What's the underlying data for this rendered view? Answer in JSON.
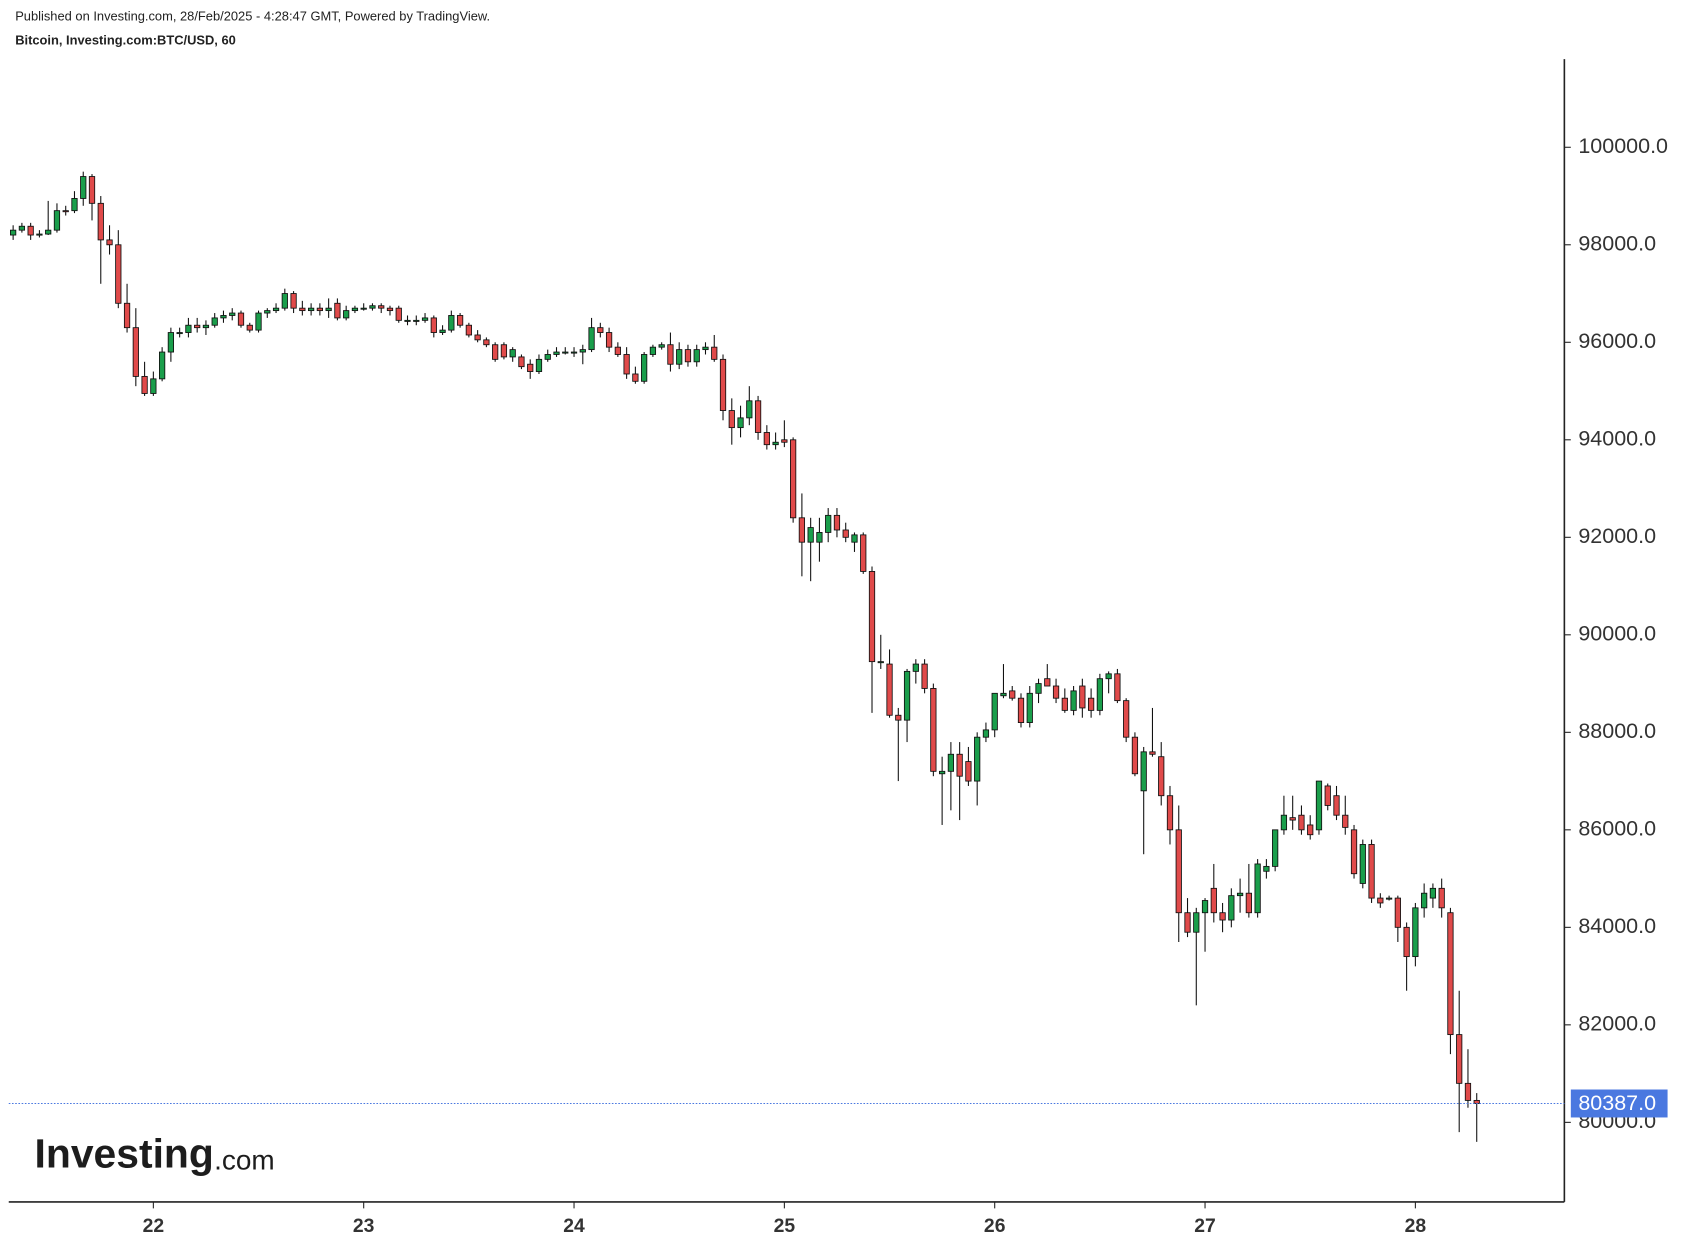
{
  "header": {
    "published": "Published on Investing.com, 28/Feb/2025 - 4:28:47 GMT, Powered by TradingView.",
    "instrument": "Bitcoin, Investing.com:BTC/USD, 60"
  },
  "logo": {
    "brand": "Investing",
    "suffix": ".com"
  },
  "chart_data": {
    "type": "candlestick",
    "up_color": "#1a9e4b",
    "down_color": "#e04a4a",
    "outline_color": "#111111",
    "xlim": [
      -0.5,
      177
    ],
    "xticks": [
      {
        "value": 16,
        "label": "22"
      },
      {
        "value": 40,
        "label": "23"
      },
      {
        "value": 64,
        "label": "24"
      },
      {
        "value": 88,
        "label": "25"
      },
      {
        "value": 112,
        "label": "26"
      },
      {
        "value": 136,
        "label": "27"
      },
      {
        "value": 160,
        "label": "28"
      }
    ],
    "ylim": [
      78368,
      101808
    ],
    "yticks": [
      {
        "value": 80000,
        "label": "80000.0"
      },
      {
        "value": 82000,
        "label": "82000.0"
      },
      {
        "value": 84000,
        "label": "84000.0"
      },
      {
        "value": 86000,
        "label": "86000.0"
      },
      {
        "value": 88000,
        "label": "88000.0"
      },
      {
        "value": 90000,
        "label": "90000.0"
      },
      {
        "value": 92000,
        "label": "92000.0"
      },
      {
        "value": 94000,
        "label": "94000.0"
      },
      {
        "value": 96000,
        "label": "96000.0"
      },
      {
        "value": 98000,
        "label": "98000.0"
      },
      {
        "value": 100000,
        "label": "100000.0"
      }
    ],
    "last_price": {
      "value": 80387,
      "label": "80387.0",
      "color": "#4a78e0"
    },
    "candles": [
      [
        98200,
        98400,
        98100,
        98300
      ],
      [
        98300,
        98450,
        98250,
        98380
      ],
      [
        98380,
        98450,
        98100,
        98200
      ],
      [
        98200,
        98300,
        98150,
        98220
      ],
      [
        98220,
        98900,
        98200,
        98300
      ],
      [
        98300,
        98850,
        98250,
        98700
      ],
      [
        98700,
        98800,
        98600,
        98680
      ],
      [
        98700,
        99100,
        98650,
        98950
      ],
      [
        98950,
        99500,
        98800,
        99400
      ],
      [
        99400,
        99450,
        98500,
        98850
      ],
      [
        98850,
        99000,
        97200,
        98100
      ],
      [
        98100,
        98400,
        97800,
        98000
      ],
      [
        98000,
        98300,
        96700,
        96800
      ],
      [
        96800,
        97200,
        96200,
        96300
      ],
      [
        96300,
        96700,
        95100,
        95300
      ],
      [
        95300,
        95600,
        94900,
        94950
      ],
      [
        94950,
        95400,
        94900,
        95250
      ],
      [
        95250,
        95900,
        95200,
        95800
      ],
      [
        95800,
        96300,
        95600,
        96200
      ],
      [
        96200,
        96300,
        96100,
        96200
      ],
      [
        96200,
        96500,
        96100,
        96350
      ],
      [
        96350,
        96500,
        96200,
        96300
      ],
      [
        96300,
        96450,
        96150,
        96350
      ],
      [
        96350,
        96600,
        96300,
        96500
      ],
      [
        96500,
        96650,
        96400,
        96550
      ],
      [
        96550,
        96700,
        96450,
        96600
      ],
      [
        96600,
        96650,
        96300,
        96350
      ],
      [
        96350,
        96400,
        96200,
        96250
      ],
      [
        96250,
        96650,
        96200,
        96600
      ],
      [
        96600,
        96700,
        96500,
        96650
      ],
      [
        96650,
        96800,
        96600,
        96700
      ],
      [
        96700,
        97100,
        96650,
        97000
      ],
      [
        97000,
        97050,
        96600,
        96700
      ],
      [
        96700,
        96850,
        96550,
        96650
      ],
      [
        96650,
        96800,
        96550,
        96700
      ],
      [
        96700,
        96800,
        96550,
        96650
      ],
      [
        96650,
        96900,
        96500,
        96700
      ],
      [
        96800,
        96900,
        96450,
        96500
      ],
      [
        96500,
        96750,
        96450,
        96650
      ],
      [
        96650,
        96750,
        96600,
        96700
      ],
      [
        96700,
        96800,
        96650,
        96700
      ],
      [
        96700,
        96800,
        96650,
        96750
      ],
      [
        96750,
        96800,
        96600,
        96700
      ],
      [
        96700,
        96750,
        96550,
        96650
      ],
      [
        96700,
        96750,
        96400,
        96450
      ],
      [
        96450,
        96550,
        96350,
        96450
      ],
      [
        96450,
        96550,
        96350,
        96450
      ],
      [
        96450,
        96600,
        96400,
        96500
      ],
      [
        96500,
        96550,
        96100,
        96200
      ],
      [
        96200,
        96350,
        96150,
        96250
      ],
      [
        96250,
        96650,
        96200,
        96550
      ],
      [
        96550,
        96600,
        96300,
        96350
      ],
      [
        96350,
        96400,
        96100,
        96150
      ],
      [
        96150,
        96250,
        96000,
        96050
      ],
      [
        96050,
        96100,
        95900,
        95950
      ],
      [
        95950,
        96000,
        95600,
        95650
      ],
      [
        95950,
        96000,
        95650,
        95700
      ],
      [
        95700,
        95900,
        95600,
        95850
      ],
      [
        95700,
        95750,
        95450,
        95500
      ],
      [
        95550,
        95650,
        95250,
        95400
      ],
      [
        95400,
        95750,
        95350,
        95650
      ],
      [
        95650,
        95850,
        95600,
        95750
      ],
      [
        95750,
        95900,
        95700,
        95800
      ],
      [
        95800,
        95900,
        95750,
        95800
      ],
      [
        95800,
        95900,
        95700,
        95800
      ],
      [
        95800,
        95950,
        95550,
        95850
      ],
      [
        95850,
        96500,
        95800,
        96300
      ],
      [
        96300,
        96400,
        96100,
        96200
      ],
      [
        96200,
        96300,
        95800,
        95900
      ],
      [
        95900,
        96000,
        95700,
        95750
      ],
      [
        95750,
        95900,
        95250,
        95350
      ],
      [
        95350,
        95500,
        95150,
        95200
      ],
      [
        95200,
        95800,
        95150,
        95750
      ],
      [
        95750,
        95950,
        95700,
        95900
      ],
      [
        95900,
        96000,
        95850,
        95950
      ],
      [
        95950,
        96200,
        95400,
        95550
      ],
      [
        95550,
        96000,
        95450,
        95850
      ],
      [
        95850,
        95950,
        95500,
        95600
      ],
      [
        95600,
        95950,
        95500,
        95850
      ],
      [
        95850,
        96000,
        95750,
        95900
      ],
      [
        95900,
        96150,
        95600,
        95650
      ],
      [
        95650,
        95750,
        94400,
        94600
      ],
      [
        94600,
        94850,
        93900,
        94250
      ],
      [
        94250,
        94700,
        94050,
        94450
      ],
      [
        94450,
        95100,
        94300,
        94800
      ],
      [
        94800,
        94900,
        94000,
        94150
      ],
      [
        94150,
        94300,
        93800,
        93900
      ],
      [
        93900,
        94150,
        93800,
        93950
      ],
      [
        94000,
        94400,
        93850,
        93950
      ],
      [
        94000,
        94050,
        92300,
        92400
      ],
      [
        92400,
        92900,
        91200,
        91900
      ],
      [
        91900,
        92400,
        91100,
        92200
      ],
      [
        91900,
        92400,
        91500,
        92100
      ],
      [
        92100,
        92600,
        91900,
        92450
      ],
      [
        92450,
        92600,
        92000,
        92150
      ],
      [
        92150,
        92300,
        91900,
        92000
      ],
      [
        91900,
        92100,
        91700,
        92050
      ],
      [
        92050,
        92100,
        91250,
        91300
      ],
      [
        91300,
        91400,
        88400,
        89450
      ],
      [
        89450,
        90000,
        89300,
        89450
      ],
      [
        89400,
        89700,
        88300,
        88350
      ],
      [
        88350,
        88500,
        87000,
        88250
      ],
      [
        88250,
        89300,
        87800,
        89250
      ],
      [
        89250,
        89500,
        89000,
        89400
      ],
      [
        89400,
        89500,
        88800,
        88900
      ],
      [
        88900,
        89000,
        87100,
        87200
      ],
      [
        87150,
        87500,
        86100,
        87200
      ],
      [
        87200,
        87800,
        86400,
        87550
      ],
      [
        87550,
        87800,
        86200,
        87100
      ],
      [
        87400,
        87700,
        86900,
        87000
      ],
      [
        87000,
        88000,
        86500,
        87900
      ],
      [
        87900,
        88200,
        87800,
        88050
      ],
      [
        88050,
        88800,
        87900,
        88800
      ],
      [
        88750,
        89400,
        88700,
        88800
      ],
      [
        88850,
        88950,
        88650,
        88700
      ],
      [
        88700,
        88800,
        88100,
        88200
      ],
      [
        88200,
        88950,
        88100,
        88800
      ],
      [
        88800,
        89100,
        88600,
        89000
      ],
      [
        89100,
        89400,
        88950,
        88950
      ],
      [
        88950,
        89100,
        88600,
        88700
      ],
      [
        88700,
        88900,
        88400,
        88450
      ],
      [
        88450,
        88950,
        88350,
        88850
      ],
      [
        88950,
        89100,
        88300,
        88500
      ],
      [
        88700,
        88900,
        88300,
        88450
      ],
      [
        88450,
        89200,
        88350,
        89100
      ],
      [
        89100,
        89250,
        88800,
        89200
      ],
      [
        89200,
        89300,
        88600,
        88650
      ],
      [
        88650,
        88700,
        87800,
        87900
      ],
      [
        87900,
        88000,
        87100,
        87150
      ],
      [
        86800,
        87700,
        85500,
        87600
      ],
      [
        87600,
        88500,
        87500,
        87550
      ],
      [
        87500,
        87800,
        86500,
        86700
      ],
      [
        86700,
        86900,
        85700,
        86000
      ],
      [
        86000,
        86500,
        83700,
        84300
      ],
      [
        84300,
        84600,
        83800,
        83900
      ],
      [
        83900,
        84400,
        82400,
        84300
      ],
      [
        84300,
        84600,
        83500,
        84550
      ],
      [
        84800,
        85300,
        84100,
        84300
      ],
      [
        84300,
        84500,
        83900,
        84150
      ],
      [
        84150,
        84800,
        84000,
        84650
      ],
      [
        84650,
        85000,
        84300,
        84700
      ],
      [
        84700,
        85300,
        84200,
        84300
      ],
      [
        84300,
        85400,
        84200,
        85300
      ],
      [
        85150,
        85400,
        85000,
        85250
      ],
      [
        85250,
        86000,
        85150,
        86000
      ],
      [
        86000,
        86700,
        85900,
        86300
      ],
      [
        86250,
        86700,
        86000,
        86200
      ],
      [
        86300,
        86500,
        85900,
        86000
      ],
      [
        86100,
        86300,
        85800,
        85900
      ],
      [
        86000,
        87000,
        85900,
        87000
      ],
      [
        86900,
        86950,
        86400,
        86500
      ],
      [
        86700,
        86900,
        86200,
        86300
      ],
      [
        86300,
        86700,
        85900,
        86050
      ],
      [
        86000,
        86100,
        85000,
        85100
      ],
      [
        84900,
        85800,
        84800,
        85700
      ],
      [
        85700,
        85800,
        84500,
        84600
      ],
      [
        84600,
        84700,
        84400,
        84500
      ],
      [
        84600,
        84650,
        84550,
        84600
      ],
      [
        84600,
        84650,
        83700,
        84000
      ],
      [
        84000,
        84100,
        82700,
        83400
      ],
      [
        83400,
        84500,
        83200,
        84400
      ],
      [
        84400,
        84900,
        84200,
        84700
      ],
      [
        84600,
        84900,
        84400,
        84800
      ],
      [
        84800,
        85000,
        84200,
        84400
      ],
      [
        84300,
        84400,
        81400,
        81800
      ],
      [
        81800,
        82700,
        79800,
        80800
      ],
      [
        80800,
        81500,
        80300,
        80450
      ],
      [
        80450,
        80600,
        79600,
        80387
      ]
    ]
  }
}
